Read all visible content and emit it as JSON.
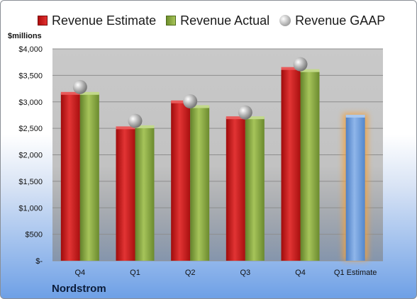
{
  "units_label": "$millions",
  "company": "Nordstrom",
  "legend": [
    {
      "label": "Revenue Estimate",
      "icon": "red-square-icon"
    },
    {
      "label": "Revenue Actual",
      "icon": "green-square-icon"
    },
    {
      "label": "Revenue GAAP",
      "icon": "gray-circle-icon"
    }
  ],
  "colors": {
    "estimate": "#c41a1a",
    "actual": "#86a83c",
    "gaap": "#a8a8a8",
    "forecast": "#6b9bd6",
    "forecast_glow": "#f4a13a"
  },
  "chart_data": {
    "type": "bar",
    "categories": [
      "Q4",
      "Q1",
      "Q2",
      "Q3",
      "Q4",
      "Q1 Estimate"
    ],
    "series": [
      {
        "name": "Revenue Estimate",
        "values": [
          3160,
          2510,
          3000,
          2700,
          3630,
          null
        ]
      },
      {
        "name": "Revenue Actual",
        "values": [
          3160,
          2530,
          2910,
          2700,
          3590,
          null
        ]
      },
      {
        "name": "Revenue GAAP",
        "values": [
          3280,
          2640,
          3010,
          2800,
          3710,
          null
        ]
      }
    ],
    "forecast": {
      "category": "Q1 Estimate",
      "value": 2730
    },
    "ylim": [
      0,
      4000
    ],
    "yticks": [
      0,
      500,
      1000,
      1500,
      2000,
      2500,
      3000,
      3500,
      4000
    ],
    "ytick_labels": [
      "$-",
      "$500",
      "$1,000",
      "$1,500",
      "$2,000",
      "$2,500",
      "$3,000",
      "$3,500",
      "$4,000"
    ],
    "ylabel": "$millions",
    "grid": true,
    "legend_position": "top"
  }
}
